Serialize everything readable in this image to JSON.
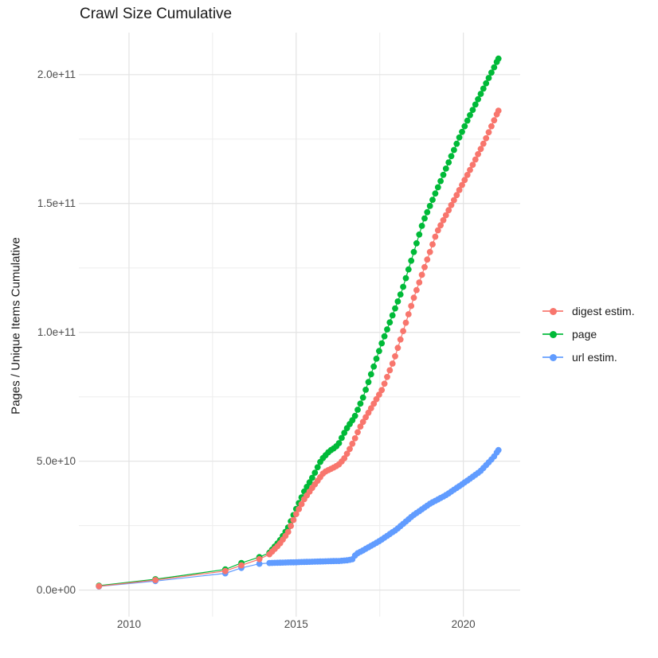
{
  "chart_data": {
    "type": "scatter",
    "title": "Crawl Size Cumulative",
    "subtitle": "",
    "xlabel": "",
    "ylabel": "Pages / Unique Items Cumulative",
    "grid": "on",
    "legend_position": "right",
    "x_domain": [
      2008.5,
      2021.7
    ],
    "y_domain": [
      -10300000000.0,
      216300000000.0
    ],
    "x_axis": {
      "ticks": [
        2010,
        2015,
        2020
      ],
      "tick_labels": [
        "2010",
        "2015",
        "2020"
      ],
      "minor": [
        2012.5,
        2017.5
      ]
    },
    "y_axis": {
      "ticks": [
        0,
        50000000000.0,
        100000000000.0,
        150000000000.0,
        200000000000.0
      ],
      "tick_labels": [
        "0.0e+00",
        "5.0e+10",
        "1.0e+11",
        "1.5e+11",
        "2.0e+11"
      ],
      "minor": [
        25000000000.0,
        75000000000.0,
        125000000000.0,
        175000000000.0
      ]
    },
    "crawl_dates": {
      "early": [
        2009.1,
        2010.79,
        2012.88,
        2013.36,
        2013.9
      ],
      "monthly_start": 2014.2,
      "monthly_step": 0.08,
      "monthly_end": 2021.0,
      "final": 2021.05
    },
    "series": [
      {
        "name": "digest estim.",
        "color": "#F8766D",
        "anchors": [
          [
            2009.1,
            1500000000.0
          ],
          [
            2010.79,
            3900000000.0
          ],
          [
            2012.88,
            7400000000.0
          ],
          [
            2013.36,
            9600000000.0
          ],
          [
            2013.9,
            12000000000.0
          ],
          [
            2014.2,
            13900000000.0
          ],
          [
            2014.5,
            17800000000.0
          ],
          [
            2014.75,
            22300000000.0
          ],
          [
            2015.0,
            29500000000.0
          ],
          [
            2015.25,
            35500000000.0
          ],
          [
            2015.5,
            40000000000.0
          ],
          [
            2015.83,
            45700000000.0
          ],
          [
            2016.02,
            46900000000.0
          ],
          [
            2016.26,
            48500000000.0
          ],
          [
            2016.43,
            50900000000.0
          ],
          [
            2016.57,
            54000000000.0
          ],
          [
            2016.74,
            58300000000.0
          ],
          [
            2016.9,
            63000000000.0
          ],
          [
            2017.1,
            67500000000.0
          ],
          [
            2017.57,
            77800000000.0
          ],
          [
            2017.93,
            89500000000.0
          ],
          [
            2018.5,
            112700000000.0
          ],
          [
            2019.2,
            138600000000.0
          ],
          [
            2019.83,
            154000000000.0
          ],
          [
            2020.24,
            164000000000.0
          ],
          [
            2020.67,
            175000000000.0
          ],
          [
            2020.9,
            181700000000.0
          ],
          [
            2021.05,
            186000000000.0
          ]
        ]
      },
      {
        "name": "page",
        "color": "#00BA38",
        "anchors": [
          [
            2009.1,
            1700000000.0
          ],
          [
            2010.79,
            4200000000.0
          ],
          [
            2012.88,
            8000000000.0
          ],
          [
            2013.36,
            10500000000.0
          ],
          [
            2013.9,
            12800000000.0
          ],
          [
            2014.2,
            14500000000.0
          ],
          [
            2014.5,
            19000000000.0
          ],
          [
            2014.75,
            24000000000.0
          ],
          [
            2015.0,
            31500000000.0
          ],
          [
            2015.25,
            38500000000.0
          ],
          [
            2015.5,
            44000000000.0
          ],
          [
            2015.75,
            50500000000.0
          ],
          [
            2016.0,
            54000000000.0
          ],
          [
            2016.15,
            55200000000.0
          ],
          [
            2016.26,
            56500000000.0
          ],
          [
            2016.43,
            60800000000.0
          ],
          [
            2016.55,
            63500000000.0
          ],
          [
            2016.74,
            67000000000.0
          ],
          [
            2017.0,
            74700000000.0
          ],
          [
            2017.55,
            95400000000.0
          ],
          [
            2018.17,
            116400000000.0
          ],
          [
            2018.8,
            143000000000.0
          ],
          [
            2019.88,
            175600000000.0
          ],
          [
            2020.14,
            182700000000.0
          ],
          [
            2021.05,
            206200000000.0
          ]
        ]
      },
      {
        "name": "url estim.",
        "color": "#619CFF",
        "anchors": [
          [
            2009.1,
            1400000000.0
          ],
          [
            2010.79,
            3500000000.0
          ],
          [
            2012.88,
            6500000000.0
          ],
          [
            2013.36,
            8600000000.0
          ],
          [
            2013.9,
            10200000000.0
          ],
          [
            2014.2,
            10500000000.0
          ],
          [
            2015.0,
            10800000000.0
          ],
          [
            2015.5,
            11000000000.0
          ],
          [
            2016.0,
            11200000000.0
          ],
          [
            2016.3,
            11300000000.0
          ],
          [
            2016.55,
            11600000000.0
          ],
          [
            2016.7,
            12000000000.0
          ],
          [
            2016.78,
            13900000000.0
          ],
          [
            2017.0,
            15400000000.0
          ],
          [
            2017.5,
            19100000000.0
          ],
          [
            2018.0,
            23500000000.0
          ],
          [
            2018.5,
            29000000000.0
          ],
          [
            2019.0,
            33500000000.0
          ],
          [
            2019.5,
            37000000000.0
          ],
          [
            2020.0,
            41400000000.0
          ],
          [
            2020.5,
            46000000000.0
          ],
          [
            2020.9,
            51500000000.0
          ],
          [
            2021.05,
            54300000000.0
          ]
        ]
      }
    ],
    "style": {
      "grid_major_color": "#e3e3e3",
      "grid_minor_color": "#ededed",
      "tick_label_color": "#4d4d4d",
      "text_color": "#1a1a1a"
    }
  }
}
